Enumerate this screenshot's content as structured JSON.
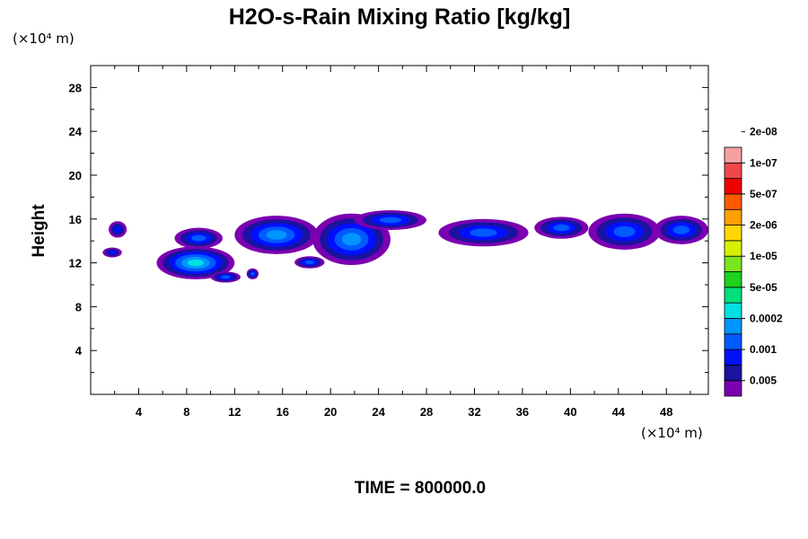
{
  "chart_data": {
    "type": "heatmap",
    "title": "H2O-s-Rain Mixing Ratio [kg/kg]",
    "ylabel": "Height",
    "xlabel": "",
    "x_unit": "(×10⁴ m)",
    "y_unit": "(×10⁴ m)",
    "xlim": [
      0,
      51.5
    ],
    "ylim": [
      0,
      30
    ],
    "x_ticks": [
      4,
      8,
      12,
      16,
      20,
      24,
      28,
      32,
      36,
      40,
      44,
      48
    ],
    "y_ticks": [
      4,
      8,
      12,
      16,
      20,
      24,
      28
    ],
    "legend": {
      "labels": [
        "0.005",
        "0.001",
        "0.0002",
        "5e-05",
        "1e-05",
        "2e-06",
        "5e-07",
        "1e-07",
        "2e-08"
      ],
      "colors": [
        "#7a00b0",
        "#1a12a0",
        "#0010ff",
        "#005aff",
        "#0096ff",
        "#00e0e0",
        "#00e07a",
        "#1ed21e",
        "#7ae61e",
        "#d8f000",
        "#ffd700",
        "#ffa000",
        "#ff5a00",
        "#f00000",
        "#f04848",
        "#f7a0a0"
      ]
    },
    "features": [
      {
        "x": [
          1.5,
          3.0
        ],
        "y": [
          14.3,
          15.8
        ],
        "level": 2
      },
      {
        "x": [
          1.0,
          2.6
        ],
        "y": [
          12.5,
          13.4
        ],
        "level": 2
      },
      {
        "x": [
          5.5,
          12.0
        ],
        "y": [
          10.5,
          13.5
        ],
        "level": 5
      },
      {
        "x": [
          7.0,
          11.0
        ],
        "y": [
          13.3,
          15.2
        ],
        "level": 3
      },
      {
        "x": [
          10.0,
          12.5
        ],
        "y": [
          10.2,
          11.2
        ],
        "level": 3
      },
      {
        "x": [
          13.0,
          14.0
        ],
        "y": [
          10.5,
          11.5
        ],
        "level": 3
      },
      {
        "x": [
          12.0,
          19.0
        ],
        "y": [
          12.8,
          16.3
        ],
        "level": 4
      },
      {
        "x": [
          17.0,
          19.5
        ],
        "y": [
          11.5,
          12.6
        ],
        "level": 3
      },
      {
        "x": [
          18.5,
          25.0
        ],
        "y": [
          11.8,
          16.5
        ],
        "level": 4
      },
      {
        "x": [
          22.0,
          28.0
        ],
        "y": [
          15.0,
          16.8
        ],
        "level": 3
      },
      {
        "x": [
          29.0,
          36.5
        ],
        "y": [
          13.5,
          16.0
        ],
        "level": 3
      },
      {
        "x": [
          37.0,
          41.5
        ],
        "y": [
          14.2,
          16.2
        ],
        "level": 3
      },
      {
        "x": [
          41.5,
          47.5
        ],
        "y": [
          13.2,
          16.5
        ],
        "level": 3
      },
      {
        "x": [
          47.0,
          51.5
        ],
        "y": [
          13.7,
          16.3
        ],
        "level": 3
      }
    ]
  },
  "footer": {
    "time_label": "TIME = 800000.0"
  }
}
